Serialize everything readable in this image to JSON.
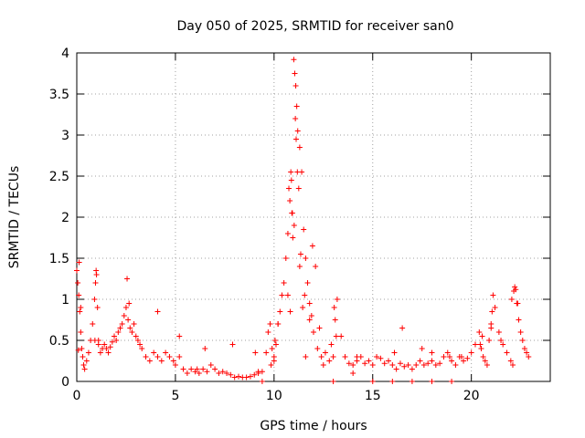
{
  "chart_data": {
    "type": "scatter",
    "title": "Day 050 of 2025, SRMTID for receiver san0",
    "xlabel": "GPS time / hours",
    "ylabel": "SRMTID / TECUs",
    "xlim": [
      0,
      24
    ],
    "ylim": [
      0,
      4
    ],
    "xticks": [
      0,
      5,
      10,
      15,
      20
    ],
    "yticks": [
      0,
      0.5,
      1,
      1.5,
      2,
      2.5,
      3,
      3.5,
      4
    ],
    "xtick_labels": [
      "0",
      "5",
      "10",
      "15",
      "20"
    ],
    "ytick_labels": [
      "0",
      "0.5",
      "1",
      "1.5",
      "2",
      "2.5",
      "3",
      "3.5",
      "4"
    ],
    "grid": true,
    "marker": "plus",
    "color": "#ff0000",
    "series": [
      {
        "name": "SRMTID",
        "x": [
          0.0,
          0.05,
          0.1,
          0.15,
          0.2,
          0.25,
          0.3,
          0.35,
          0.4,
          0.5,
          0.6,
          0.7,
          0.8,
          0.9,
          0.95,
          1.0,
          1.05,
          1.1,
          1.2,
          1.3,
          1.4,
          1.5,
          1.6,
          1.7,
          1.8,
          1.9,
          2.0,
          2.1,
          2.2,
          2.3,
          2.4,
          2.5,
          2.6,
          2.7,
          2.8,
          2.9,
          3.0,
          3.1,
          3.2,
          3.3,
          3.5,
          3.7,
          3.9,
          4.1,
          4.3,
          4.5,
          4.7,
          4.9,
          5.0,
          5.2,
          5.4,
          5.6,
          5.8,
          6.0,
          6.2,
          6.4,
          6.6,
          6.8,
          7.0,
          7.2,
          7.4,
          7.6,
          7.8,
          8.0,
          8.2,
          8.4,
          8.6,
          8.8,
          9.0,
          9.2,
          9.4,
          9.6,
          9.7,
          9.8,
          9.9,
          10.0,
          10.1,
          10.2,
          10.3,
          10.4,
          10.5,
          10.6,
          10.7,
          10.75,
          10.8,
          10.85,
          10.9,
          10.95,
          11.0,
          11.05,
          11.1,
          11.15,
          11.2,
          11.3,
          11.4,
          11.5,
          11.6,
          11.7,
          11.8,
          11.9,
          12.0,
          12.2,
          12.4,
          12.6,
          12.8,
          13.0,
          13.1,
          13.2,
          13.4,
          13.6,
          13.8,
          14.0,
          14.2,
          14.4,
          14.6,
          14.8,
          15.0,
          15.2,
          15.4,
          15.6,
          15.8,
          16.0,
          16.2,
          16.4,
          16.6,
          16.8,
          17.0,
          17.2,
          17.4,
          17.6,
          17.8,
          18.0,
          18.2,
          18.4,
          18.6,
          18.8,
          19.0,
          19.2,
          19.4,
          19.6,
          19.8,
          20.0,
          20.2,
          20.4,
          20.5,
          20.6,
          20.7,
          20.8,
          20.9,
          21.0,
          21.1,
          21.2,
          21.4,
          21.6,
          21.8,
          22.0,
          22.1,
          22.2,
          22.3,
          22.4,
          22.5,
          22.6,
          22.7,
          22.8,
          22.9,
          0.08,
          0.12,
          0.2,
          0.92,
          0.98,
          2.55,
          2.65,
          10.82,
          10.88,
          10.93,
          11.02,
          11.08,
          11.12,
          11.18,
          11.25,
          11.35,
          11.45,
          11.55,
          11.8,
          11.95,
          12.1,
          12.3,
          12.9,
          13.05,
          13.15,
          16.5,
          18.0,
          18.9,
          20.45,
          20.55,
          21.0,
          21.05,
          22.05,
          22.15,
          22.25,
          22.35,
          4.1,
          5.2,
          6.5,
          7.9,
          9.05,
          9.85,
          10.05,
          11.6,
          14.2,
          16.1,
          17.5,
          19.5,
          21.5,
          1.1,
          6.1,
          9.2,
          9.4,
          10.0,
          10.2,
          10.7,
          11.3,
          12.5,
          13.0,
          14.0,
          15.0,
          16.0,
          17.0,
          18.0,
          19.0
        ],
        "y": [
          1.35,
          1.2,
          1.05,
          0.85,
          0.6,
          0.4,
          0.3,
          0.2,
          0.15,
          0.25,
          0.35,
          0.5,
          0.7,
          1.0,
          1.2,
          1.3,
          0.9,
          0.5,
          0.35,
          0.4,
          0.45,
          0.4,
          0.35,
          0.42,
          0.48,
          0.55,
          0.5,
          0.6,
          0.65,
          0.7,
          0.8,
          0.9,
          0.75,
          0.65,
          0.6,
          0.7,
          0.55,
          0.5,
          0.45,
          0.4,
          0.3,
          0.25,
          0.35,
          0.3,
          0.25,
          0.35,
          0.3,
          0.25,
          0.2,
          0.3,
          0.15,
          0.1,
          0.15,
          0.12,
          0.1,
          0.15,
          0.12,
          0.2,
          0.15,
          0.1,
          0.12,
          0.1,
          0.08,
          0.05,
          0.06,
          0.05,
          0.05,
          0.06,
          0.08,
          0.1,
          0.12,
          0.35,
          0.6,
          0.7,
          0.4,
          0.3,
          0.45,
          0.7,
          0.85,
          1.05,
          1.2,
          1.5,
          1.8,
          2.35,
          2.2,
          2.55,
          2.05,
          1.75,
          3.92,
          3.75,
          3.6,
          3.35,
          3.05,
          2.85,
          2.55,
          1.85,
          1.5,
          1.2,
          0.95,
          0.8,
          0.6,
          0.4,
          0.3,
          0.35,
          0.25,
          0.3,
          0.75,
          1.0,
          0.55,
          0.3,
          0.22,
          0.2,
          0.25,
          0.3,
          0.22,
          0.25,
          0.2,
          0.3,
          0.28,
          0.22,
          0.25,
          0.2,
          0.15,
          0.22,
          0.18,
          0.2,
          0.15,
          0.2,
          0.25,
          0.2,
          0.22,
          0.25,
          0.2,
          0.22,
          0.3,
          0.35,
          0.25,
          0.2,
          0.3,
          0.25,
          0.28,
          0.35,
          0.45,
          0.6,
          0.4,
          0.3,
          0.25,
          0.2,
          0.5,
          0.7,
          1.05,
          0.9,
          0.6,
          0.45,
          0.35,
          0.25,
          0.2,
          1.15,
          0.95,
          0.75,
          0.6,
          0.5,
          0.4,
          0.35,
          0.3,
          0.38,
          1.45,
          0.9,
          0.5,
          1.35,
          1.25,
          0.95,
          0.85,
          2.45,
          2.05,
          1.9,
          3.2,
          2.95,
          2.55,
          2.35,
          1.55,
          0.9,
          1.05,
          0.75,
          1.65,
          1.4,
          0.65,
          0.45,
          0.9,
          0.55,
          0.65,
          0.35,
          0.3,
          0.45,
          0.55,
          0.65,
          0.85,
          1.0,
          1.1,
          1.12,
          0.95,
          0.85,
          0.55,
          0.4,
          0.45,
          0.35,
          0.2,
          0.5,
          0.3,
          0.3,
          0.35,
          0.4,
          0.3,
          0.5,
          0.45,
          0.15,
          0.12,
          0.0,
          0.25,
          0.7,
          1.05,
          1.4,
          0.2,
          0.0,
          0.1,
          0.0,
          0.0,
          0.0,
          0.0,
          0.0
        ]
      }
    ]
  }
}
